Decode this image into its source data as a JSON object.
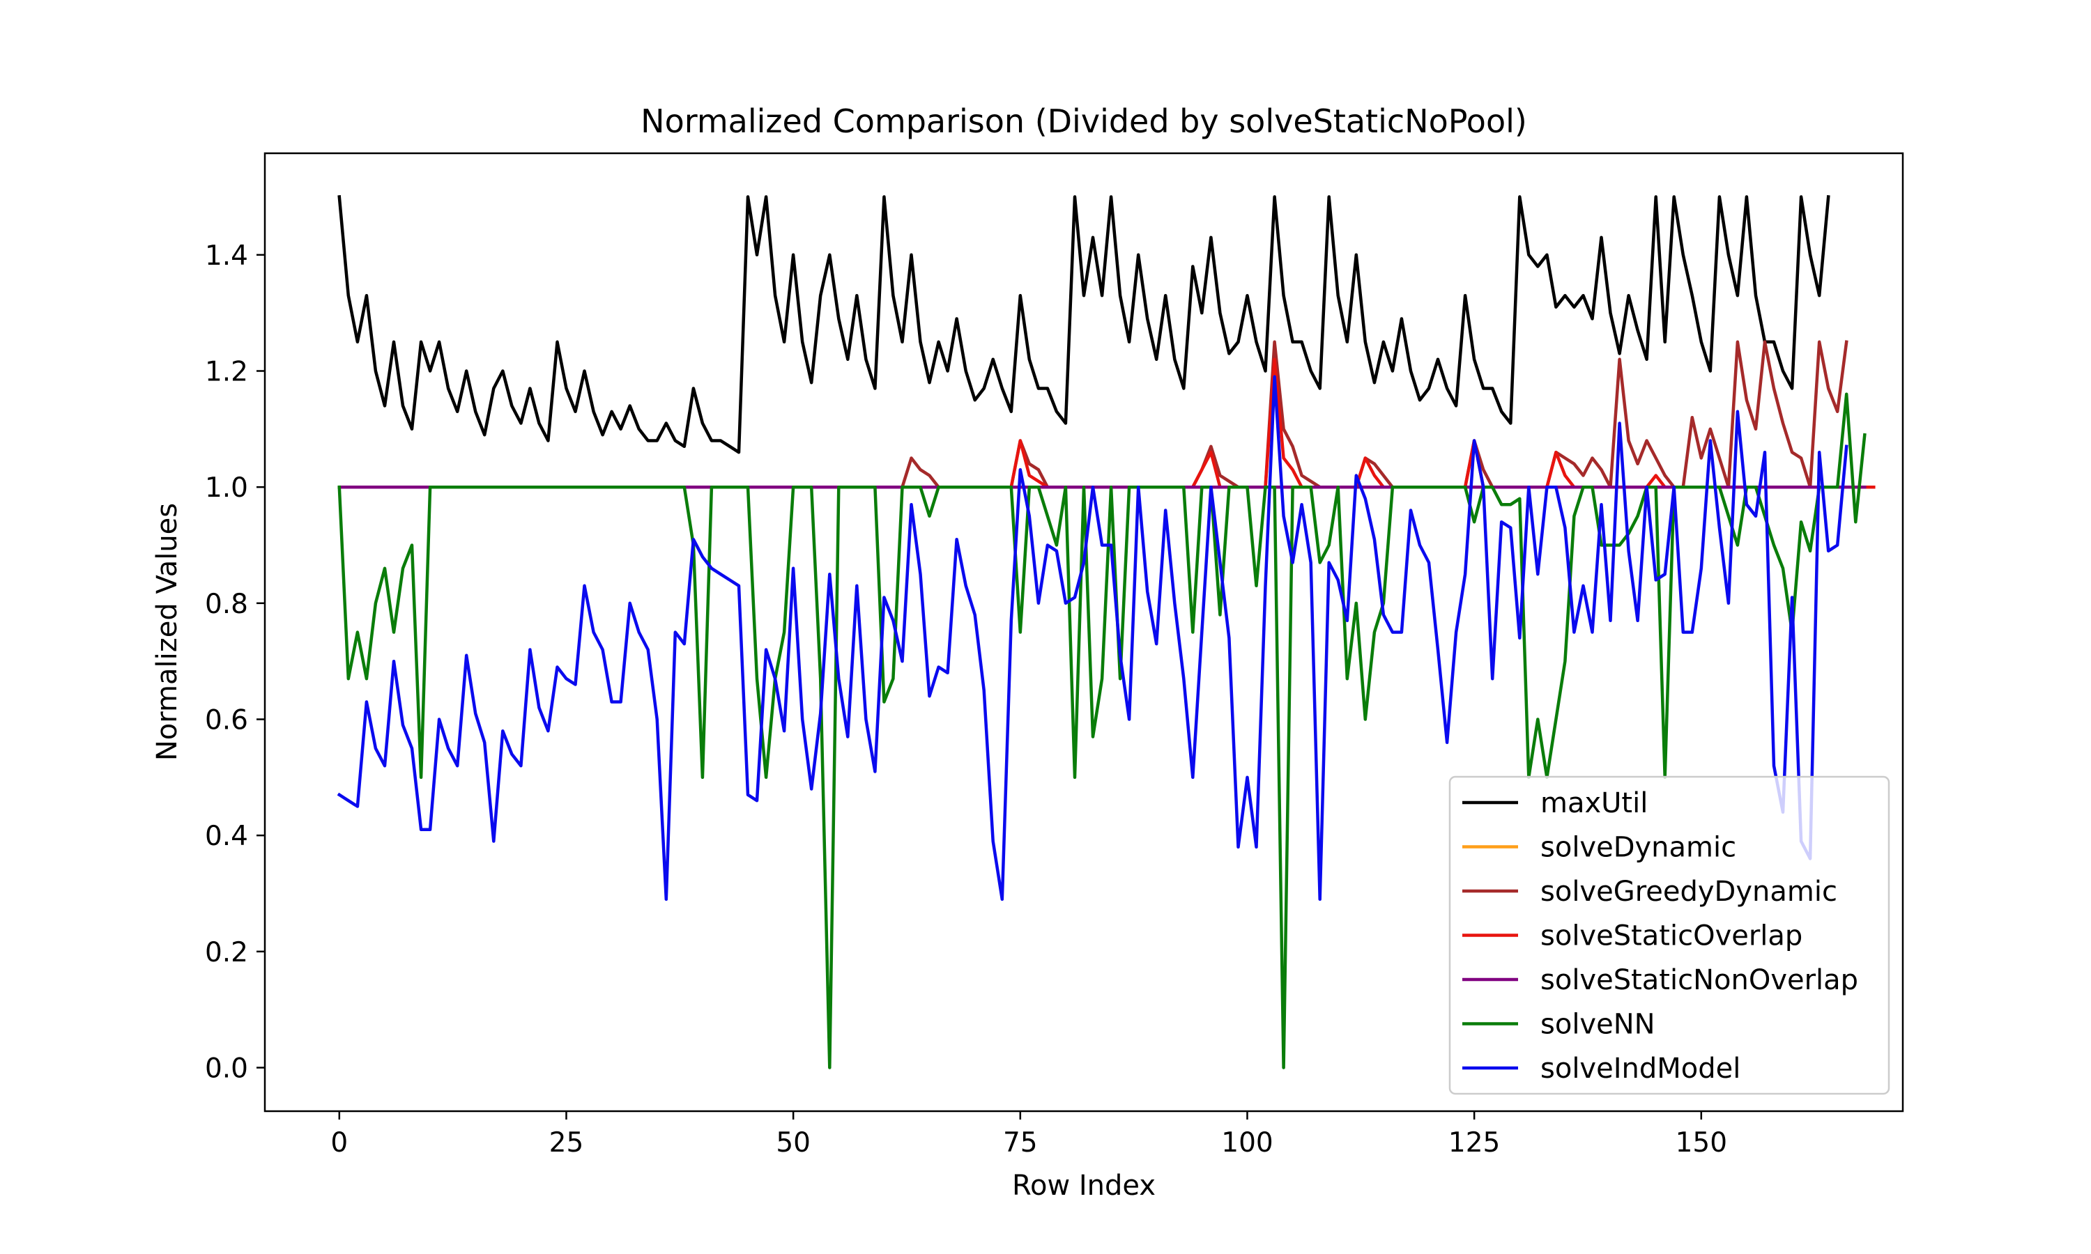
{
  "chart_data": {
    "type": "line",
    "title": "Normalized Comparison (Divided by solveStaticNoPool)",
    "xlabel": "Row Index",
    "ylabel": "Normalized Values",
    "xlim": [
      -8.2,
      172.2
    ],
    "ylim": [
      -0.075,
      1.575
    ],
    "xticks": [
      0,
      25,
      50,
      75,
      100,
      125,
      150
    ],
    "yticks": [
      0.0,
      0.2,
      0.4,
      0.6,
      0.8,
      1.0,
      1.2,
      1.4
    ],
    "x_start": 0,
    "legend_position": "lower right",
    "grid": false,
    "series": [
      {
        "name": "maxUtil",
        "color": "#000000",
        "values": [
          1.5,
          1.33,
          1.25,
          1.33,
          1.2,
          1.14,
          1.25,
          1.14,
          1.1,
          1.25,
          1.2,
          1.25,
          1.17,
          1.13,
          1.2,
          1.13,
          1.09,
          1.17,
          1.2,
          1.14,
          1.11,
          1.17,
          1.11,
          1.08,
          1.25,
          1.17,
          1.13,
          1.2,
          1.13,
          1.09,
          1.13,
          1.1,
          1.14,
          1.1,
          1.08,
          1.08,
          1.11,
          1.08,
          1.07,
          1.17,
          1.11,
          1.08,
          1.08,
          1.07,
          1.06,
          1.5,
          1.4,
          1.5,
          1.33,
          1.25,
          1.4,
          1.25,
          1.18,
          1.33,
          1.4,
          1.29,
          1.22,
          1.33,
          1.22,
          1.17,
          1.5,
          1.33,
          1.25,
          1.4,
          1.25,
          1.18,
          1.25,
          1.2,
          1.29,
          1.2,
          1.15,
          1.17,
          1.22,
          1.17,
          1.13,
          1.33,
          1.22,
          1.17,
          1.17,
          1.13,
          1.11,
          1.5,
          1.33,
          1.43,
          1.33,
          1.5,
          1.33,
          1.25,
          1.4,
          1.29,
          1.22,
          1.33,
          1.22,
          1.17,
          1.38,
          1.3,
          1.43,
          1.3,
          1.23,
          1.25,
          1.33,
          1.25,
          1.2,
          1.5,
          1.33,
          1.25,
          1.25,
          1.2,
          1.17,
          1.5,
          1.33,
          1.25,
          1.4,
          1.25,
          1.18,
          1.25,
          1.2,
          1.29,
          1.2,
          1.15,
          1.17,
          1.22,
          1.17,
          1.14,
          1.33,
          1.22,
          1.17,
          1.17,
          1.13,
          1.11,
          1.5,
          1.4,
          1.38,
          1.4,
          1.31,
          1.33,
          1.31,
          1.33,
          1.29,
          1.43,
          1.3,
          1.23,
          1.33,
          1.27,
          1.22,
          1.5,
          1.25,
          1.5,
          1.4,
          1.33,
          1.25,
          1.2,
          1.5,
          1.4,
          1.33,
          1.5,
          1.33,
          1.25,
          1.25,
          1.2,
          1.17,
          1.5,
          1.4,
          1.33,
          1.5
        ]
      },
      {
        "name": "solveDynamic",
        "color": "#ff9f1a",
        "values": [
          1.0,
          1.0,
          1.0,
          1.0,
          1.0,
          1.0,
          1.0,
          1.0,
          1.0,
          1.0,
          1.0,
          1.0,
          1.0,
          1.0,
          1.0,
          1.0,
          1.0,
          1.0,
          1.0,
          1.0,
          1.0,
          1.0,
          1.0,
          1.0,
          1.0,
          1.0,
          1.0,
          1.0,
          1.0,
          1.0,
          1.0,
          1.0,
          1.0,
          1.0,
          1.0,
          1.0,
          1.0,
          1.0,
          1.0,
          1.0,
          1.0,
          1.0,
          1.0,
          1.0,
          1.0,
          1.0,
          1.0,
          1.0,
          1.0,
          1.0,
          1.0,
          1.0,
          1.0,
          1.0,
          1.0,
          1.0,
          1.0,
          1.0,
          1.0,
          1.0,
          1.0,
          1.0,
          1.0,
          1.0,
          1.0,
          1.0,
          1.0,
          1.0,
          1.0,
          1.0,
          1.0,
          1.0,
          1.0,
          1.0,
          1.0,
          1.0,
          1.0,
          1.0,
          1.0,
          1.0,
          1.0,
          1.0,
          1.0,
          1.0,
          1.0,
          1.0,
          1.0,
          1.0,
          1.0,
          1.0,
          1.0,
          1.0,
          1.0,
          1.0,
          1.0,
          1.0,
          1.0,
          1.0,
          1.0,
          1.0,
          1.0,
          1.0,
          1.0,
          1.0,
          1.0,
          1.0,
          1.0,
          1.0,
          1.0,
          1.0,
          1.0,
          1.0,
          1.0,
          1.0,
          1.0,
          1.0,
          1.0,
          1.0,
          1.0,
          1.0,
          1.0,
          1.0,
          1.0,
          1.0,
          1.0,
          1.0,
          1.0,
          1.0,
          1.0,
          1.0,
          1.0,
          1.0,
          1.0,
          1.0,
          1.0,
          1.0,
          1.0,
          1.0,
          1.0,
          1.0,
          1.0,
          1.0,
          1.0,
          1.0,
          1.0,
          1.0,
          1.0,
          1.0,
          1.0,
          1.0,
          1.0,
          1.0,
          1.0,
          1.0,
          1.0,
          1.0,
          1.0,
          1.0,
          1.0,
          1.0,
          1.0,
          1.0,
          1.0,
          1.0,
          1.0,
          1.0,
          1.0
        ]
      },
      {
        "name": "solveGreedyDynamic",
        "color": "#a52a2a",
        "values": [
          1.0,
          1.0,
          1.0,
          1.0,
          1.0,
          1.0,
          1.0,
          1.0,
          1.0,
          1.0,
          1.0,
          1.0,
          1.0,
          1.0,
          1.0,
          1.0,
          1.0,
          1.0,
          1.0,
          1.0,
          1.0,
          1.0,
          1.0,
          1.0,
          1.0,
          1.0,
          1.0,
          1.0,
          1.0,
          1.0,
          1.0,
          1.0,
          1.0,
          1.0,
          1.0,
          1.0,
          1.0,
          1.0,
          1.0,
          1.0,
          1.0,
          1.0,
          1.0,
          1.0,
          1.0,
          1.0,
          1.0,
          1.0,
          1.0,
          1.0,
          1.0,
          1.0,
          1.0,
          1.0,
          1.0,
          1.0,
          1.0,
          1.0,
          1.0,
          1.0,
          1.0,
          1.0,
          1.0,
          1.05,
          1.03,
          1.02,
          1.0,
          1.0,
          1.0,
          1.0,
          1.0,
          1.0,
          1.0,
          1.0,
          1.0,
          1.08,
          1.04,
          1.03,
          1.0,
          1.0,
          1.0,
          1.0,
          1.0,
          1.0,
          1.0,
          1.0,
          1.0,
          1.0,
          1.0,
          1.0,
          1.0,
          1.0,
          1.0,
          1.0,
          1.0,
          1.03,
          1.07,
          1.02,
          1.01,
          1.0,
          1.0,
          1.0,
          1.0,
          1.25,
          1.1,
          1.07,
          1.02,
          1.01,
          1.0,
          1.0,
          1.0,
          1.0,
          1.0,
          1.05,
          1.04,
          1.02,
          1.0,
          1.0,
          1.0,
          1.0,
          1.0,
          1.0,
          1.0,
          1.0,
          1.0,
          1.08,
          1.03,
          1.0,
          1.0,
          1.0,
          1.0,
          1.0,
          1.0,
          1.0,
          1.06,
          1.05,
          1.04,
          1.02,
          1.05,
          1.03,
          1.0,
          1.22,
          1.08,
          1.04,
          1.08,
          1.05,
          1.02,
          1.0,
          1.0,
          1.12,
          1.05,
          1.1,
          1.05,
          1.0,
          1.25,
          1.15,
          1.1,
          1.25,
          1.17,
          1.11,
          1.06,
          1.05,
          1.0,
          1.25,
          1.17,
          1.13,
          1.25
        ]
      },
      {
        "name": "solveStaticOverlap",
        "color": "#e8140f",
        "values": [
          1.0,
          1.0,
          1.0,
          1.0,
          1.0,
          1.0,
          1.0,
          1.0,
          1.0,
          1.0,
          1.0,
          1.0,
          1.0,
          1.0,
          1.0,
          1.0,
          1.0,
          1.0,
          1.0,
          1.0,
          1.0,
          1.0,
          1.0,
          1.0,
          1.0,
          1.0,
          1.0,
          1.0,
          1.0,
          1.0,
          1.0,
          1.0,
          1.0,
          1.0,
          1.0,
          1.0,
          1.0,
          1.0,
          1.0,
          1.0,
          1.0,
          1.0,
          1.0,
          1.0,
          1.0,
          1.0,
          1.0,
          1.0,
          1.0,
          1.0,
          1.0,
          1.0,
          1.0,
          1.0,
          1.0,
          1.0,
          1.0,
          1.0,
          1.0,
          1.0,
          1.0,
          1.0,
          1.0,
          1.0,
          1.0,
          1.0,
          1.0,
          1.0,
          1.0,
          1.0,
          1.0,
          1.0,
          1.0,
          1.0,
          1.0,
          1.08,
          1.02,
          1.01,
          1.0,
          1.0,
          1.0,
          1.0,
          1.0,
          1.0,
          1.0,
          1.0,
          1.0,
          1.0,
          1.0,
          1.0,
          1.0,
          1.0,
          1.0,
          1.0,
          1.0,
          1.03,
          1.06,
          1.0,
          1.0,
          1.0,
          1.0,
          1.0,
          1.0,
          1.22,
          1.05,
          1.03,
          1.0,
          1.0,
          1.0,
          1.0,
          1.0,
          1.0,
          1.0,
          1.05,
          1.02,
          1.0,
          1.0,
          1.0,
          1.0,
          1.0,
          1.0,
          1.0,
          1.0,
          1.0,
          1.0,
          1.08,
          1.0,
          1.0,
          1.0,
          1.0,
          1.0,
          1.0,
          1.0,
          1.0,
          1.06,
          1.02,
          1.0,
          1.0,
          1.0,
          1.0,
          1.0,
          1.0,
          1.0,
          1.0,
          1.0,
          1.02,
          1.0,
          1.0,
          1.0,
          1.0,
          1.0,
          1.0,
          1.0,
          1.0,
          1.0,
          1.0,
          1.0,
          1.0,
          1.0,
          1.0,
          1.0,
          1.0,
          1.0,
          1.0,
          1.0,
          1.0,
          1.0,
          1.0,
          1.0,
          1.0
        ]
      },
      {
        "name": "solveStaticNonOverlap",
        "color": "#800080",
        "values": [
          1.0,
          1.0,
          1.0,
          1.0,
          1.0,
          1.0,
          1.0,
          1.0,
          1.0,
          1.0,
          1.0,
          1.0,
          1.0,
          1.0,
          1.0,
          1.0,
          1.0,
          1.0,
          1.0,
          1.0,
          1.0,
          1.0,
          1.0,
          1.0,
          1.0,
          1.0,
          1.0,
          1.0,
          1.0,
          1.0,
          1.0,
          1.0,
          1.0,
          1.0,
          1.0,
          1.0,
          1.0,
          1.0,
          1.0,
          1.0,
          1.0,
          1.0,
          1.0,
          1.0,
          1.0,
          1.0,
          1.0,
          1.0,
          1.0,
          1.0,
          1.0,
          1.0,
          1.0,
          1.0,
          1.0,
          1.0,
          1.0,
          1.0,
          1.0,
          1.0,
          1.0,
          1.0,
          1.0,
          1.0,
          1.0,
          1.0,
          1.0,
          1.0,
          1.0,
          1.0,
          1.0,
          1.0,
          1.0,
          1.0,
          1.0,
          1.0,
          1.0,
          1.0,
          1.0,
          1.0,
          1.0,
          1.0,
          1.0,
          1.0,
          1.0,
          1.0,
          1.0,
          1.0,
          1.0,
          1.0,
          1.0,
          1.0,
          1.0,
          1.0,
          1.0,
          1.0,
          1.0,
          1.0,
          1.0,
          1.0,
          1.0,
          1.0,
          1.0,
          1.0,
          1.0,
          1.0,
          1.0,
          1.0,
          1.0,
          1.0,
          1.0,
          1.0,
          1.0,
          1.0,
          1.0,
          1.0,
          1.0,
          1.0,
          1.0,
          1.0,
          1.0,
          1.0,
          1.0,
          1.0,
          1.0,
          1.0,
          1.0,
          1.0,
          1.0,
          1.0,
          1.0,
          1.0,
          1.0,
          1.0,
          1.0,
          1.0,
          1.0,
          1.0,
          1.0,
          1.0,
          1.0,
          1.0,
          1.0,
          1.0,
          1.0,
          1.0,
          1.0,
          1.0,
          1.0,
          1.0,
          1.0,
          1.0,
          1.0,
          1.0,
          1.0,
          1.0,
          1.0,
          1.0,
          1.0,
          1.0,
          1.0,
          1.0,
          1.0,
          1.0,
          1.0,
          1.0,
          1.0,
          1.0,
          1.0
        ]
      },
      {
        "name": "solveNN",
        "color": "#0a7d0a",
        "values": [
          1.0,
          0.67,
          0.75,
          0.67,
          0.8,
          0.86,
          0.75,
          0.86,
          0.9,
          0.5,
          1.0,
          1.0,
          1.0,
          1.0,
          1.0,
          1.0,
          1.0,
          1.0,
          1.0,
          1.0,
          1.0,
          1.0,
          1.0,
          1.0,
          1.0,
          1.0,
          1.0,
          1.0,
          1.0,
          1.0,
          1.0,
          1.0,
          1.0,
          1.0,
          1.0,
          1.0,
          1.0,
          1.0,
          1.0,
          0.9,
          0.5,
          1.0,
          1.0,
          1.0,
          1.0,
          1.0,
          0.67,
          0.5,
          0.67,
          0.75,
          1.0,
          1.0,
          1.0,
          0.67,
          0.0,
          1.0,
          1.0,
          1.0,
          1.0,
          1.0,
          0.63,
          0.67,
          1.0,
          1.0,
          1.0,
          0.95,
          1.0,
          1.0,
          1.0,
          1.0,
          1.0,
          1.0,
          1.0,
          1.0,
          1.0,
          0.75,
          1.0,
          1.0,
          0.95,
          0.9,
          1.0,
          0.5,
          1.0,
          0.57,
          0.67,
          1.0,
          0.67,
          1.0,
          1.0,
          1.0,
          1.0,
          1.0,
          1.0,
          1.0,
          0.75,
          1.0,
          1.0,
          0.78,
          1.0,
          1.0,
          1.0,
          0.83,
          1.0,
          1.0,
          0.0,
          1.0,
          1.0,
          1.0,
          0.87,
          0.9,
          1.0,
          0.67,
          0.8,
          0.6,
          0.75,
          0.8,
          1.0,
          1.0,
          1.0,
          1.0,
          1.0,
          1.0,
          1.0,
          1.0,
          1.0,
          0.94,
          1.0,
          1.0,
          0.97,
          0.97,
          0.98,
          0.5,
          0.6,
          0.5,
          0.6,
          0.7,
          0.95,
          1.0,
          1.0,
          0.9,
          0.9,
          0.9,
          0.92,
          0.95,
          1.0,
          1.0,
          0.5,
          1.0,
          1.0,
          1.0,
          1.0,
          1.0,
          1.0,
          0.95,
          0.9,
          1.0,
          1.0,
          0.95,
          0.9,
          0.86,
          0.75,
          0.94,
          0.89,
          1.0,
          1.0,
          1.0,
          1.16,
          0.94,
          1.09
        ]
      },
      {
        "name": "solveIndModel",
        "color": "#0a0aee",
        "values": [
          0.47,
          0.46,
          0.45,
          0.63,
          0.55,
          0.52,
          0.7,
          0.59,
          0.55,
          0.41,
          0.41,
          0.6,
          0.55,
          0.52,
          0.71,
          0.61,
          0.56,
          0.39,
          0.58,
          0.54,
          0.52,
          0.72,
          0.62,
          0.58,
          0.69,
          0.67,
          0.66,
          0.83,
          0.75,
          0.72,
          0.63,
          0.63,
          0.8,
          0.75,
          0.72,
          0.6,
          0.29,
          0.75,
          0.73,
          0.91,
          0.88,
          0.86,
          0.85,
          0.84,
          0.83,
          0.47,
          0.46,
          0.72,
          0.67,
          0.58,
          0.86,
          0.6,
          0.48,
          0.61,
          0.85,
          0.67,
          0.57,
          0.83,
          0.6,
          0.51,
          0.81,
          0.77,
          0.7,
          0.97,
          0.85,
          0.64,
          0.69,
          0.68,
          0.91,
          0.83,
          0.78,
          0.65,
          0.39,
          0.29,
          0.77,
          1.03,
          0.95,
          0.8,
          0.9,
          0.89,
          0.8,
          0.81,
          0.87,
          1.0,
          0.9,
          0.9,
          0.71,
          0.6,
          1.0,
          0.82,
          0.73,
          0.96,
          0.8,
          0.67,
          0.5,
          0.75,
          1.0,
          0.87,
          0.74,
          0.38,
          0.5,
          0.38,
          0.83,
          1.19,
          0.95,
          0.87,
          0.97,
          0.87,
          0.29,
          0.87,
          0.84,
          0.77,
          1.02,
          0.98,
          0.91,
          0.78,
          0.75,
          0.75,
          0.96,
          0.9,
          0.87,
          0.72,
          0.56,
          0.75,
          0.85,
          1.08,
          1.0,
          0.67,
          0.94,
          0.93,
          0.74,
          1.0,
          0.85,
          1.0,
          1.0,
          0.93,
          0.75,
          0.83,
          0.75,
          0.97,
          0.77,
          1.11,
          0.89,
          0.77,
          1.0,
          0.84,
          0.85,
          1.0,
          0.75,
          0.75,
          0.86,
          1.08,
          0.93,
          0.8,
          1.13,
          0.97,
          0.95,
          1.06,
          0.52,
          0.44,
          0.81,
          0.39,
          0.36,
          1.06,
          0.89,
          0.9,
          1.07
        ]
      }
    ]
  }
}
